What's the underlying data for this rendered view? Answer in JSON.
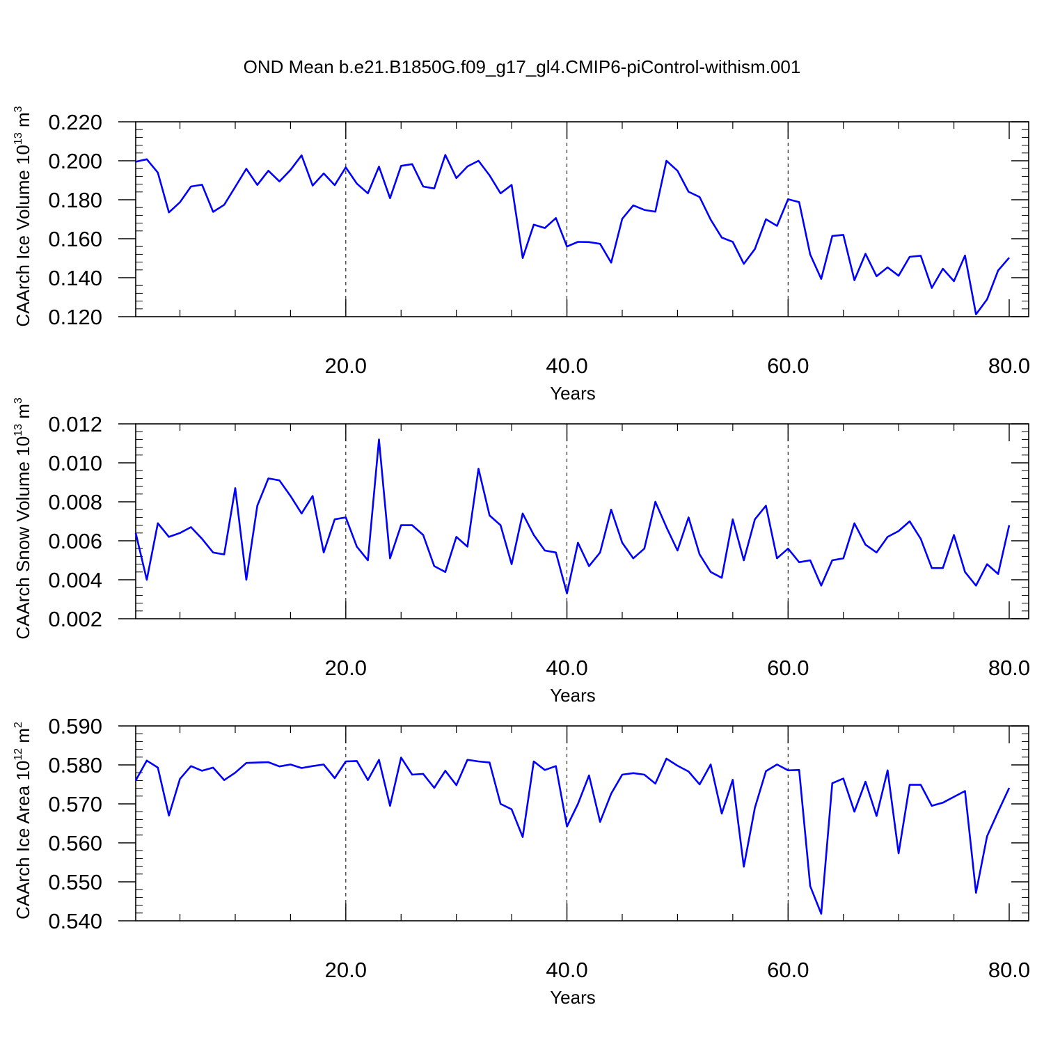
{
  "title": "OND Mean b.e21.B1850G.f09_g17_gl4.CMIP6-piControl-withism.001",
  "chart_data": [
    {
      "type": "line",
      "xlabel": "Years",
      "ylabel": {
        "text": "CAArch Ice Volume 10",
        "exp": "13",
        "unit": " m",
        "unit_exp": "3"
      },
      "xlim": [
        1,
        80
      ],
      "ylim": [
        0.12,
        0.22
      ],
      "xticks": [
        "20.0",
        "40.0",
        "60.0",
        "80.0"
      ],
      "yticks": [
        "0.120",
        "0.140",
        "0.160",
        "0.180",
        "0.200",
        "0.220"
      ],
      "line_color": "#0000ff",
      "x": [
        1,
        2,
        3,
        4,
        5,
        6,
        7,
        8,
        9,
        10,
        11,
        12,
        13,
        14,
        15,
        16,
        17,
        18,
        19,
        20,
        21,
        22,
        23,
        24,
        25,
        26,
        27,
        28,
        29,
        30,
        31,
        32,
        33,
        34,
        35,
        36,
        37,
        38,
        39,
        40,
        41,
        42,
        43,
        44,
        45,
        46,
        47,
        48,
        49,
        50,
        51,
        52,
        53,
        54,
        55,
        56,
        57,
        58,
        59,
        60,
        61,
        62,
        63,
        64,
        65,
        66,
        67,
        68,
        69,
        70,
        71,
        72,
        73,
        74,
        75,
        76,
        77,
        78,
        79,
        80
      ],
      "values": [
        0.1995,
        0.2008,
        0.1939,
        0.1735,
        0.1787,
        0.1868,
        0.1877,
        0.1738,
        0.1774,
        0.1866,
        0.1959,
        0.1876,
        0.1949,
        0.1894,
        0.1953,
        0.2028,
        0.1873,
        0.1935,
        0.1875,
        0.1966,
        0.1883,
        0.1833,
        0.197,
        0.1808,
        0.1974,
        0.1983,
        0.1868,
        0.1858,
        0.203,
        0.1911,
        0.1971,
        0.2,
        0.1925,
        0.1833,
        0.1876,
        0.1501,
        0.1672,
        0.1655,
        0.1706,
        0.156,
        0.1584,
        0.1583,
        0.1574,
        0.1477,
        0.1702,
        0.1771,
        0.1748,
        0.1739,
        0.2,
        0.1949,
        0.1841,
        0.1814,
        0.1698,
        0.1606,
        0.1584,
        0.1471,
        0.1547,
        0.17,
        0.1666,
        0.1803,
        0.1788,
        0.1519,
        0.1394,
        0.1614,
        0.162,
        0.1387,
        0.1523,
        0.1408,
        0.1453,
        0.141,
        0.1507,
        0.1513,
        0.1348,
        0.1446,
        0.1382,
        0.1514,
        0.1212,
        0.1289,
        0.1437,
        0.1503
      ]
    },
    {
      "type": "line",
      "xlabel": "Years",
      "ylabel": {
        "text": "CAArch Snow Volume 10",
        "exp": "13",
        "unit": " m",
        "unit_exp": "3"
      },
      "xlim": [
        1,
        80
      ],
      "ylim": [
        0.002,
        0.012
      ],
      "xticks": [
        "20.0",
        "40.0",
        "60.0",
        "80.0"
      ],
      "yticks": [
        "0.002",
        "0.004",
        "0.006",
        "0.008",
        "0.010",
        "0.012"
      ],
      "line_color": "#0000ff",
      "x": [
        1,
        2,
        3,
        4,
        5,
        6,
        7,
        8,
        9,
        10,
        11,
        12,
        13,
        14,
        15,
        16,
        17,
        18,
        19,
        20,
        21,
        22,
        23,
        24,
        25,
        26,
        27,
        28,
        29,
        30,
        31,
        32,
        33,
        34,
        35,
        36,
        37,
        38,
        39,
        40,
        41,
        42,
        43,
        44,
        45,
        46,
        47,
        48,
        49,
        50,
        51,
        52,
        53,
        54,
        55,
        56,
        57,
        58,
        59,
        60,
        61,
        62,
        63,
        64,
        65,
        66,
        67,
        68,
        69,
        70,
        71,
        72,
        73,
        74,
        75,
        76,
        77,
        78,
        79,
        80
      ],
      "values": [
        0.0064,
        0.004,
        0.0069,
        0.0062,
        0.0064,
        0.0067,
        0.0061,
        0.0054,
        0.0053,
        0.0087,
        0.004,
        0.0078,
        0.0092,
        0.0091,
        0.0083,
        0.0074,
        0.0083,
        0.0054,
        0.0071,
        0.0072,
        0.0057,
        0.005,
        0.0112,
        0.0051,
        0.0068,
        0.0068,
        0.0063,
        0.0047,
        0.0044,
        0.0062,
        0.0057,
        0.0097,
        0.0073,
        0.0068,
        0.0048,
        0.0074,
        0.0063,
        0.0055,
        0.0054,
        0.0033,
        0.0059,
        0.0047,
        0.0054,
        0.0076,
        0.0059,
        0.0051,
        0.0056,
        0.008,
        0.0067,
        0.0055,
        0.0072,
        0.0053,
        0.0044,
        0.0041,
        0.0071,
        0.005,
        0.0071,
        0.0078,
        0.0051,
        0.0056,
        0.0049,
        0.005,
        0.0037,
        0.005,
        0.0051,
        0.0069,
        0.0058,
        0.0054,
        0.0062,
        0.0065,
        0.007,
        0.0061,
        0.0046,
        0.0046,
        0.0063,
        0.0044,
        0.0037,
        0.0048,
        0.0043,
        0.0068
      ]
    },
    {
      "type": "line",
      "xlabel": "Years",
      "ylabel": {
        "text": "CAArch Ice Area 10",
        "exp": "12",
        "unit": " m",
        "unit_exp": "2"
      },
      "xlim": [
        1,
        80
      ],
      "ylim": [
        0.54,
        0.59
      ],
      "xticks": [
        "20.0",
        "40.0",
        "60.0",
        "80.0"
      ],
      "yticks": [
        "0.540",
        "0.550",
        "0.560",
        "0.570",
        "0.580",
        "0.590"
      ],
      "line_color": "#0000ff",
      "x": [
        1,
        2,
        3,
        4,
        5,
        6,
        7,
        8,
        9,
        10,
        11,
        12,
        13,
        14,
        15,
        16,
        17,
        18,
        19,
        20,
        21,
        22,
        23,
        24,
        25,
        26,
        27,
        28,
        29,
        30,
        31,
        32,
        33,
        34,
        35,
        36,
        37,
        38,
        39,
        40,
        41,
        42,
        43,
        44,
        45,
        46,
        47,
        48,
        49,
        50,
        51,
        52,
        53,
        54,
        55,
        56,
        57,
        58,
        59,
        60,
        61,
        62,
        63,
        64,
        65,
        66,
        67,
        68,
        69,
        70,
        71,
        72,
        73,
        74,
        75,
        76,
        77,
        78,
        79,
        80
      ],
      "values": [
        0.576,
        0.5811,
        0.5793,
        0.567,
        0.5764,
        0.5797,
        0.5785,
        0.5793,
        0.5761,
        0.578,
        0.5805,
        0.5806,
        0.5807,
        0.5796,
        0.5801,
        0.5792,
        0.5797,
        0.5801,
        0.5766,
        0.5809,
        0.581,
        0.5761,
        0.5813,
        0.5695,
        0.5819,
        0.5775,
        0.5777,
        0.5741,
        0.5785,
        0.5748,
        0.5813,
        0.5809,
        0.5806,
        0.57,
        0.5686,
        0.5615,
        0.5809,
        0.5787,
        0.5797,
        0.5642,
        0.57,
        0.5773,
        0.5654,
        0.5726,
        0.5775,
        0.5779,
        0.5775,
        0.5752,
        0.5816,
        0.5798,
        0.5783,
        0.575,
        0.5801,
        0.5675,
        0.5762,
        0.5539,
        0.569,
        0.5784,
        0.5801,
        0.5786,
        0.5787,
        0.5489,
        0.5418,
        0.5753,
        0.5765,
        0.568,
        0.5757,
        0.5669,
        0.5786,
        0.5573,
        0.5749,
        0.5749,
        0.5695,
        0.5703,
        0.5718,
        0.5733,
        0.5472,
        0.5617,
        0.568,
        0.5741
      ]
    }
  ]
}
